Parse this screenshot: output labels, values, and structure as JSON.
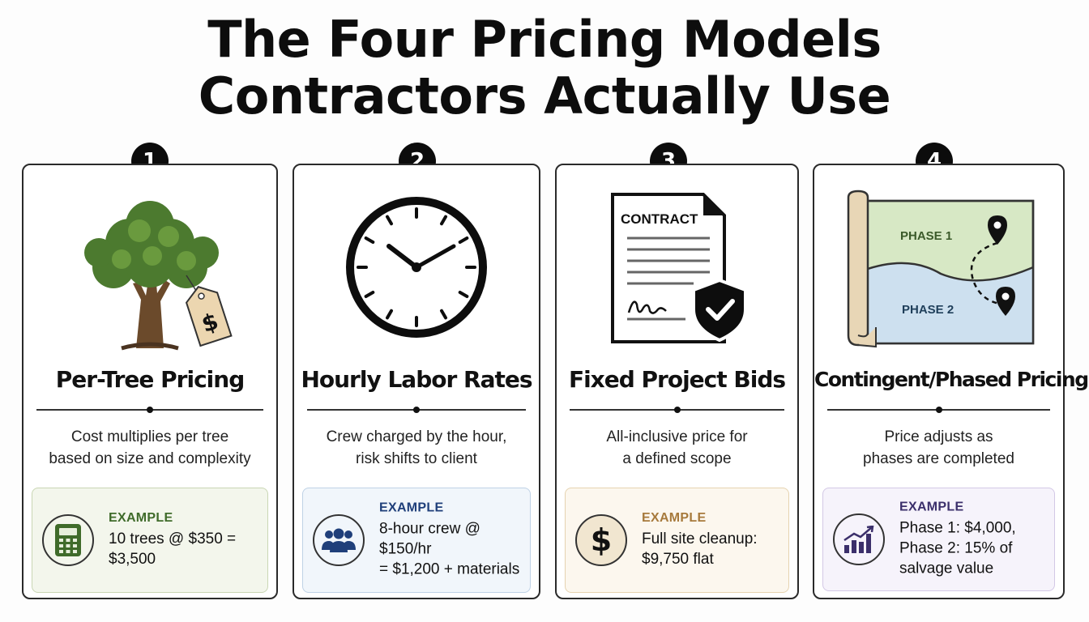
{
  "title": {
    "line1": "The Four Pricing Models",
    "line2": "Contractors Actually Use"
  },
  "cards": [
    {
      "number": "1",
      "title": "Per-Tree Pricing",
      "illustration": "tree-with-price-tag-icon",
      "tag_symbol": "$",
      "description": [
        "Cost multiplies per tree",
        "based on size and complexity"
      ],
      "example": {
        "label": "EXAMPLE",
        "icon": "calculator-icon",
        "lines": [
          "10 trees @ $350 = $3,500"
        ],
        "accent": "#3f6b2a",
        "background": "#f3f6ec",
        "border": "#c9d6b4"
      }
    },
    {
      "number": "2",
      "title": "Hourly Labor Rates",
      "illustration": "clock-icon",
      "description": [
        "Crew charged by the hour,",
        "risk shifts to client"
      ],
      "example": {
        "label": "EXAMPLE",
        "icon": "crew-icon",
        "lines": [
          "8-hour crew @ $150/hr",
          "= $1,200 + materials"
        ],
        "accent": "#1f3f7a",
        "background": "#f1f6fb",
        "border": "#bfd2e6"
      }
    },
    {
      "number": "3",
      "title": "Fixed Project Bids",
      "illustration": "contract-with-shield-icon",
      "contract_heading": "CONTRACT",
      "description": [
        "All-inclusive price for",
        "a defined scope"
      ],
      "example": {
        "label": "EXAMPLE",
        "icon": "dollar-icon",
        "icon_symbol": "$",
        "lines": [
          "Full site cleanup:",
          "$9,750 flat"
        ],
        "accent": "#a77a3c",
        "background": "#fcf7ee",
        "border": "#e6d3b0"
      }
    },
    {
      "number": "4",
      "title": "Contingent/Phased Pricing",
      "illustration": "phased-map-icon",
      "map_labels": [
        "PHASE 1",
        "PHASE 2"
      ],
      "description": [
        "Price adjusts as",
        "phases are completed"
      ],
      "example": {
        "label": "EXAMPLE",
        "icon": "growth-chart-icon",
        "lines": [
          "Phase 1: $4,000,",
          "Phase 2: 15% of",
          "salvage value"
        ],
        "accent": "#3b2f6b",
        "background": "#f6f3fb",
        "border": "#d3c8e6"
      }
    }
  ]
}
